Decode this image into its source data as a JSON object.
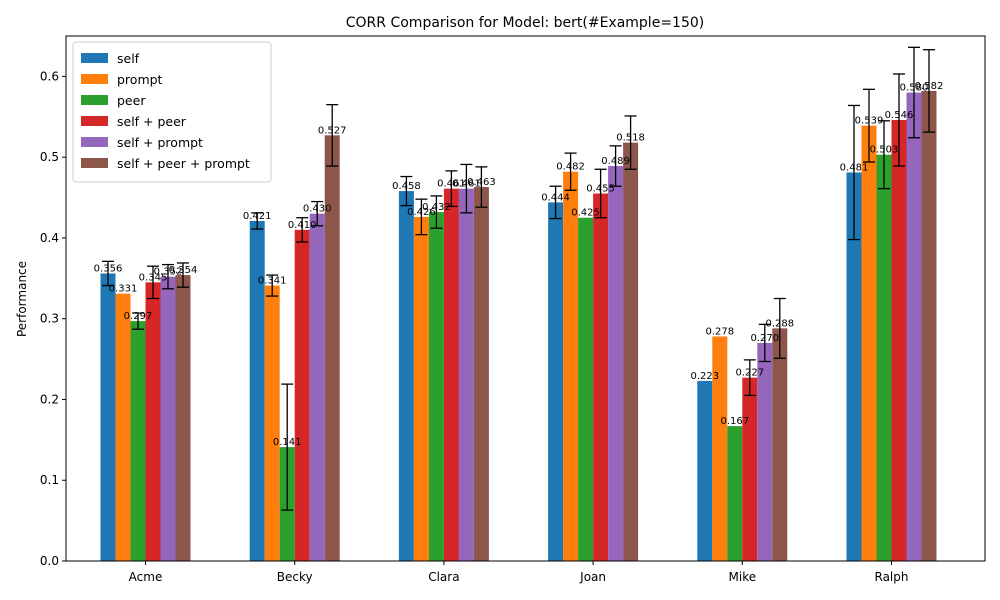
{
  "chart_data": {
    "type": "bar",
    "title": "CORR Comparison for Model: bert(#Example=150)",
    "xlabel": "",
    "ylabel": "Performance",
    "ylim": [
      0,
      0.65
    ],
    "yticks": [
      "0.0",
      "0.1",
      "0.2",
      "0.3",
      "0.4",
      "0.5",
      "0.6"
    ],
    "grid": false,
    "legend_position": "top-left",
    "categories": [
      "Acme",
      "Becky",
      "Clara",
      "Joan",
      "Mike",
      "Ralph"
    ],
    "series": [
      {
        "name": "self",
        "color": "#1f77b4",
        "values": [
          0.356,
          0.421,
          0.458,
          0.444,
          0.223,
          0.481
        ],
        "labels": [
          "0.356",
          "0.421",
          "0.458",
          "0.444",
          "0.223",
          "0.481"
        ],
        "errors": [
          0.015,
          0.01,
          0.018,
          0.02,
          null,
          0.083
        ]
      },
      {
        "name": "prompt",
        "color": "#ff7f0e",
        "values": [
          0.331,
          0.341,
          0.426,
          0.482,
          0.278,
          0.539
        ],
        "labels": [
          "0.331",
          "0.341",
          "0.426",
          "0.482",
          "0.278",
          "0.539"
        ],
        "errors": [
          null,
          0.013,
          0.022,
          0.023,
          null,
          0.045
        ]
      },
      {
        "name": "peer",
        "color": "#2ca02c",
        "values": [
          0.297,
          0.141,
          0.432,
          0.425,
          0.167,
          0.503
        ],
        "labels": [
          "0.297",
          "0.141",
          "0.432",
          "0.425",
          "0.167",
          "0.503"
        ],
        "errors": [
          0.01,
          0.078,
          0.02,
          null,
          null,
          0.042
        ]
      },
      {
        "name": "self + peer",
        "color": "#d62728",
        "values": [
          0.345,
          0.41,
          0.461,
          0.455,
          0.227,
          0.546
        ],
        "labels": [
          "0.345",
          "0.410",
          "0.461",
          "0.455",
          "0.227",
          "0.546"
        ],
        "errors": [
          0.02,
          0.015,
          0.022,
          0.03,
          0.022,
          0.057
        ]
      },
      {
        "name": "self + prompt",
        "color": "#9467bd",
        "values": [
          0.352,
          0.43,
          0.461,
          0.489,
          0.27,
          0.58
        ],
        "labels": [
          "0.352",
          "0.430",
          "0.461",
          "0.489",
          "0.270",
          "0.580"
        ],
        "errors": [
          0.015,
          0.015,
          0.03,
          0.025,
          0.023,
          0.056
        ]
      },
      {
        "name": "self + peer + prompt",
        "color": "#8c564b",
        "values": [
          0.354,
          0.527,
          0.463,
          0.518,
          0.288,
          0.582
        ],
        "labels": [
          "0.354",
          "0.527",
          "0.463",
          "0.518",
          "0.288",
          "0.582"
        ],
        "errors": [
          0.015,
          0.038,
          0.025,
          0.033,
          0.037,
          0.051
        ]
      }
    ]
  }
}
